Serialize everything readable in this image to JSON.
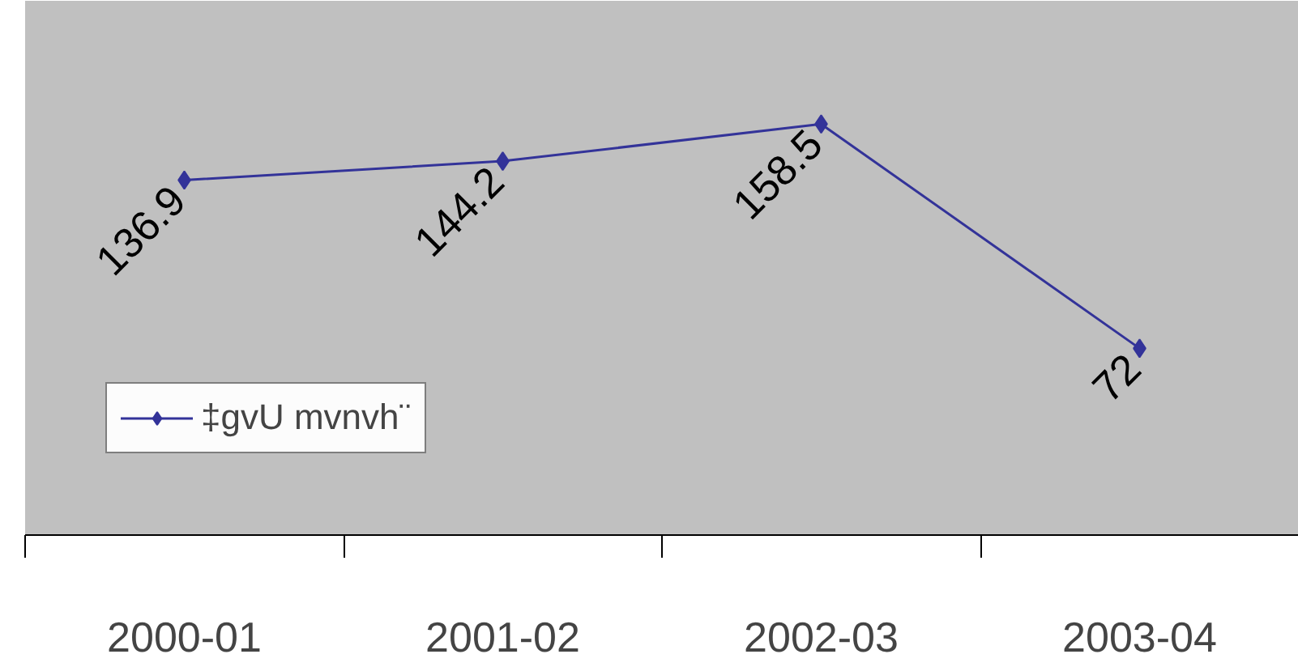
{
  "chart_data": {
    "type": "line",
    "categories": [
      "2000-01",
      "2001-02",
      "2002-03",
      "2003-04"
    ],
    "series": [
      {
        "name": "‡gvU mvnvh¨",
        "color": "#333399",
        "values": [
          136.9,
          144.2,
          158.5,
          72
        ]
      }
    ],
    "data_labels": true,
    "marker": "diamond",
    "line_style": "solid",
    "legend": "bottom left",
    "grid": false
  }
}
